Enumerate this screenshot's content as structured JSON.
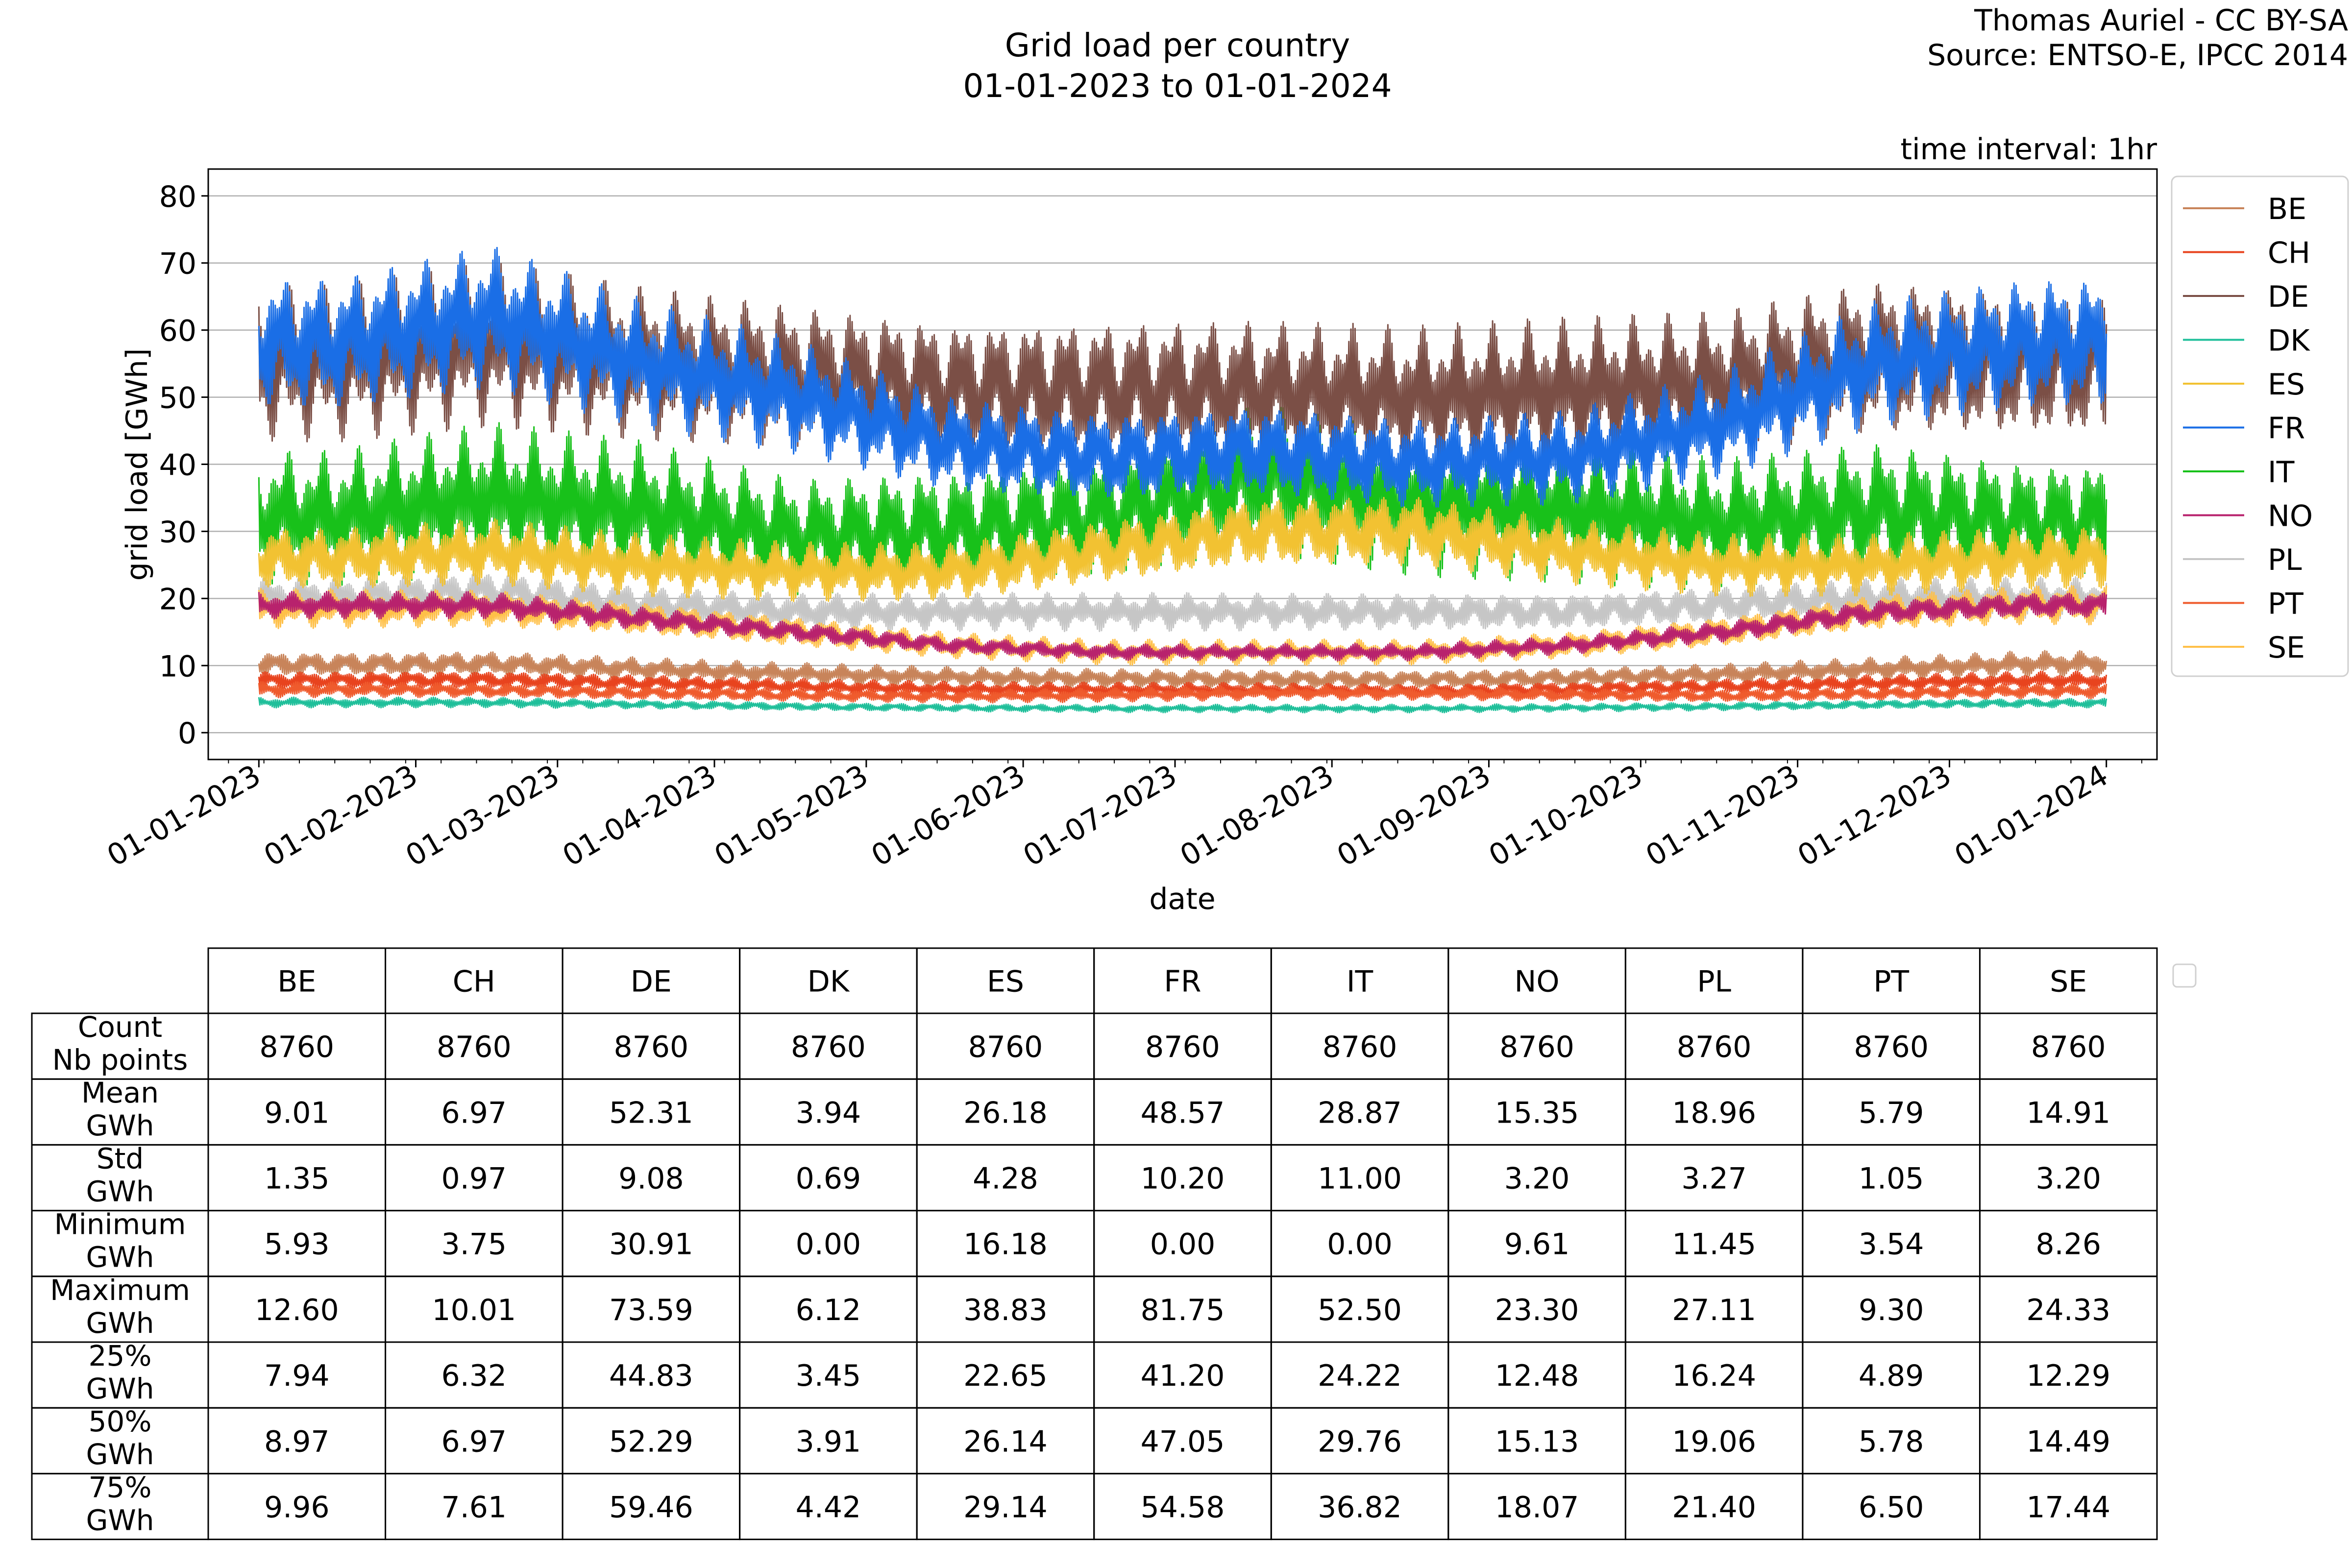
{
  "header": {
    "title_line1": "Grid load per country",
    "title_line2": "01-01-2023 to 01-01-2024",
    "credit_line1": "Thomas Auriel - CC BY-SA",
    "credit_line2": "Source: ENTSO-E, IPCC 2014",
    "interval_note": "time interval: 1hr"
  },
  "chart_data": {
    "type": "line",
    "xlabel": "date",
    "ylabel": "grid load [GWh]",
    "xlim": [
      "2022-12-22",
      "2024-01-11"
    ],
    "ylim": [
      -4,
      84
    ],
    "yticks": [
      0,
      10,
      20,
      30,
      40,
      50,
      60,
      70,
      80
    ],
    "xticks": [
      "01-01-2023",
      "01-02-2023",
      "01-03-2023",
      "01-04-2023",
      "01-05-2023",
      "01-06-2023",
      "01-07-2023",
      "01-08-2023",
      "01-09-2023",
      "01-10-2023",
      "01-11-2023",
      "01-12-2023",
      "01-01-2024"
    ],
    "grid": "horizontal",
    "legend_position": "right-outside",
    "series": [
      {
        "name": "BE",
        "color": "#c8845a",
        "monthly_mean": [
          10.2,
          10.3,
          9.5,
          8.8,
          8.3,
          8.1,
          8.0,
          7.9,
          8.2,
          8.7,
          9.5,
          10.3
        ],
        "min": 5.93,
        "max": 12.6
      },
      {
        "name": "CH",
        "color": "#e8431e",
        "monthly_mean": [
          7.8,
          7.9,
          7.4,
          6.9,
          6.5,
          6.4,
          6.4,
          6.2,
          6.5,
          6.9,
          7.4,
          7.8
        ],
        "min": 3.75,
        "max": 10.01
      },
      {
        "name": "DE",
        "color": "#7b4f46",
        "monthly_mean": [
          55,
          58,
          55,
          53,
          51,
          51,
          51,
          50,
          51,
          52,
          56,
          55
        ],
        "min": 30.91,
        "max": 73.59
      },
      {
        "name": "DK",
        "color": "#1fbf9a",
        "monthly_mean": [
          4.5,
          4.5,
          4.2,
          3.9,
          3.7,
          3.6,
          3.6,
          3.6,
          3.7,
          3.9,
          4.2,
          4.4
        ],
        "min": 0.0,
        "max": 6.12
      },
      {
        "name": "ES",
        "color": "#f2c232",
        "monthly_mean": [
          26,
          27,
          25,
          24,
          24,
          27,
          30,
          30,
          27,
          25,
          25,
          26
        ],
        "min": 16.18,
        "max": 38.83
      },
      {
        "name": "FR",
        "color": "#1a6ee6",
        "monthly_mean": [
          58,
          62,
          55,
          50,
          43,
          41,
          42,
          40,
          41,
          46,
          55,
          58
        ],
        "min": 0.0,
        "max": 81.75
      },
      {
        "name": "IT",
        "color": "#18c11a",
        "monthly_mean": [
          32,
          35,
          33,
          29,
          30,
          32,
          38,
          34,
          33,
          31,
          33,
          31
        ],
        "min": 0.0,
        "max": 52.5
      },
      {
        "name": "NO",
        "color": "#b8226d",
        "monthly_mean": [
          19,
          19,
          17,
          15,
          13,
          12,
          12,
          12,
          13,
          15,
          18,
          19
        ],
        "min": 9.61,
        "max": 23.3
      },
      {
        "name": "PL",
        "color": "#c6c6c6",
        "monthly_mean": [
          20,
          21,
          19,
          18,
          18,
          18,
          18,
          18,
          18,
          19,
          20,
          20
        ],
        "min": 11.45,
        "max": 27.11
      },
      {
        "name": "PT",
        "color": "#ef5b2d",
        "monthly_mean": [
          6.4,
          6.3,
          5.9,
          5.6,
          5.4,
          5.6,
          5.9,
          5.9,
          5.6,
          5.5,
          5.8,
          6.2
        ],
        "min": 3.54,
        "max": 9.3
      },
      {
        "name": "SE",
        "color": "#ffc048",
        "monthly_mean": [
          18.5,
          18.5,
          17,
          15,
          13,
          12,
          12,
          12,
          13,
          15,
          18,
          19
        ],
        "min": 8.26,
        "max": 24.33
      }
    ],
    "table": {
      "columns": [
        "BE",
        "CH",
        "DE",
        "DK",
        "ES",
        "FR",
        "IT",
        "NO",
        "PL",
        "PT",
        "SE"
      ],
      "rows": [
        {
          "label1": "Count",
          "label2": "Nb points",
          "values": [
            "8760",
            "8760",
            "8760",
            "8760",
            "8760",
            "8760",
            "8760",
            "8760",
            "8760",
            "8760",
            "8760"
          ]
        },
        {
          "label1": "Mean",
          "label2": "GWh",
          "values": [
            "9.01",
            "6.97",
            "52.31",
            "3.94",
            "26.18",
            "48.57",
            "28.87",
            "15.35",
            "18.96",
            "5.79",
            "14.91"
          ]
        },
        {
          "label1": "Std",
          "label2": "GWh",
          "values": [
            "1.35",
            "0.97",
            "9.08",
            "0.69",
            "4.28",
            "10.20",
            "11.00",
            "3.20",
            "3.27",
            "1.05",
            "3.20"
          ]
        },
        {
          "label1": "Minimum",
          "label2": "GWh",
          "values": [
            "5.93",
            "3.75",
            "30.91",
            "0.00",
            "16.18",
            "0.00",
            "0.00",
            "9.61",
            "11.45",
            "3.54",
            "8.26"
          ]
        },
        {
          "label1": "Maximum",
          "label2": "GWh",
          "values": [
            "12.60",
            "10.01",
            "73.59",
            "6.12",
            "38.83",
            "81.75",
            "52.50",
            "23.30",
            "27.11",
            "9.30",
            "24.33"
          ]
        },
        {
          "label1": "25%",
          "label2": "GWh",
          "values": [
            "7.94",
            "6.32",
            "44.83",
            "3.45",
            "22.65",
            "41.20",
            "24.22",
            "12.48",
            "16.24",
            "4.89",
            "12.29"
          ]
        },
        {
          "label1": "50%",
          "label2": "GWh",
          "values": [
            "8.97",
            "6.97",
            "52.29",
            "3.91",
            "26.14",
            "47.05",
            "29.76",
            "15.13",
            "19.06",
            "5.78",
            "14.49"
          ]
        },
        {
          "label1": "75%",
          "label2": "GWh",
          "values": [
            "9.96",
            "7.61",
            "59.46",
            "4.42",
            "29.14",
            "54.58",
            "36.82",
            "18.07",
            "21.40",
            "6.50",
            "17.44"
          ]
        }
      ]
    }
  }
}
